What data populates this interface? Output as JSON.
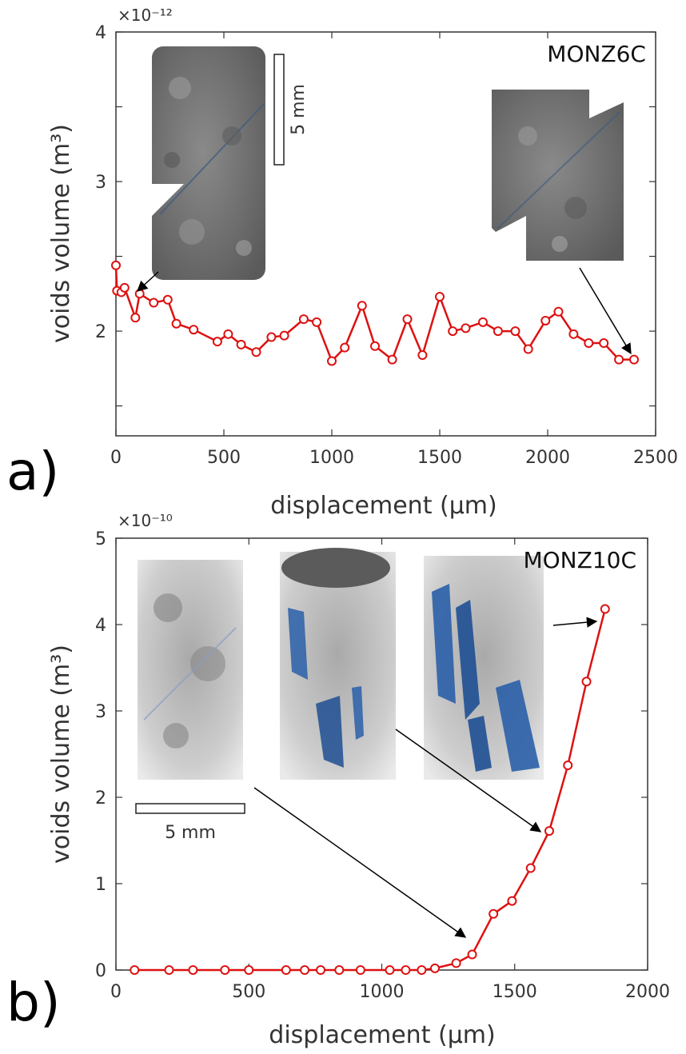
{
  "chart_data": [
    {
      "type": "line",
      "panel_letter": "a)",
      "sample": "MONZ6C",
      "xlabel": "displacement (μm)",
      "ylabel": "voids volume (m³)",
      "y_exponent": "×10⁻¹²",
      "xlim": [
        0,
        2500
      ],
      "ylim": [
        1.3,
        4.0
      ],
      "xticks": [
        0,
        500,
        1000,
        1500,
        2000,
        2500
      ],
      "xtick_labels": [
        "0",
        "500",
        "1000",
        "1500",
        "2000",
        "2500"
      ],
      "yticks": [
        1.5,
        2,
        2.5,
        3,
        3.5,
        4
      ],
      "ytick_labels": [
        "",
        "2",
        "",
        "3",
        "",
        "4"
      ],
      "grid": false,
      "color": "#dd1111",
      "scale_bar_label": "5 mm",
      "series": [
        {
          "x": [
            0,
            5,
            25,
            40,
            90,
            110,
            175,
            240,
            280,
            360,
            470,
            520,
            580,
            650,
            720,
            780,
            870,
            930,
            1000,
            1060,
            1140,
            1200,
            1280,
            1350,
            1420,
            1500,
            1560,
            1620,
            1700,
            1770,
            1850,
            1910,
            1990,
            2050,
            2120,
            2190,
            2260,
            2330,
            2400
          ],
          "y": [
            2.44,
            2.27,
            2.26,
            2.29,
            2.09,
            2.25,
            2.19,
            2.21,
            2.05,
            2.01,
            1.93,
            1.98,
            1.91,
            1.86,
            1.96,
            1.97,
            2.08,
            2.06,
            1.8,
            1.89,
            2.17,
            1.9,
            1.81,
            2.08,
            1.84,
            2.23,
            2.0,
            2.02,
            2.06,
            2.0,
            2.0,
            1.88,
            2.07,
            2.13,
            1.98,
            1.92,
            1.92,
            1.81,
            1.81
          ]
        }
      ]
    },
    {
      "type": "line",
      "panel_letter": "b)",
      "sample": "MONZ10C",
      "xlabel": "displacement (μm)",
      "ylabel": "voids volume (m³)",
      "y_exponent": "×10⁻¹⁰",
      "xlim": [
        0,
        2000
      ],
      "ylim": [
        0,
        5
      ],
      "xticks": [
        0,
        500,
        1000,
        1500,
        2000
      ],
      "xtick_labels": [
        "0",
        "500",
        "1000",
        "1500",
        "2000"
      ],
      "yticks": [
        0,
        1,
        2,
        3,
        4,
        5
      ],
      "ytick_labels": [
        "0",
        "1",
        "2",
        "3",
        "4",
        "5"
      ],
      "grid": false,
      "color": "#dd1111",
      "scale_bar_label": "5 mm",
      "series": [
        {
          "x": [
            70,
            200,
            290,
            410,
            500,
            640,
            710,
            770,
            840,
            920,
            1030,
            1090,
            1150,
            1200,
            1280,
            1340,
            1420,
            1490,
            1560,
            1630,
            1700,
            1770,
            1840
          ],
          "y": [
            0,
            0,
            0,
            0,
            0,
            0,
            0,
            0,
            0,
            0,
            0,
            0,
            0,
            0.02,
            0.08,
            0.18,
            0.65,
            0.8,
            1.18,
            1.61,
            2.37,
            3.34,
            4.18
          ]
        }
      ]
    }
  ]
}
